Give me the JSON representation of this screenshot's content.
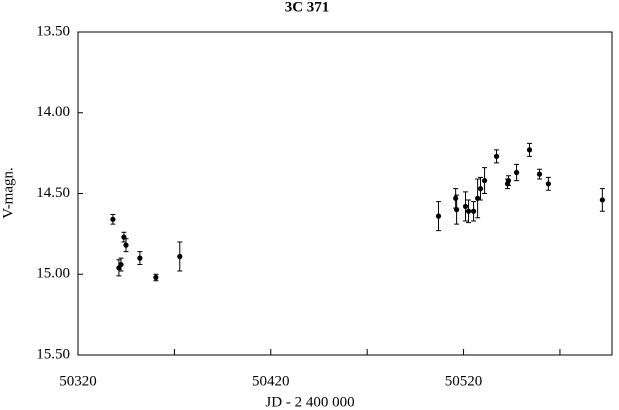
{
  "chart_data": {
    "type": "scatter",
    "title": "3C 371",
    "xlabel": "JD  - 2 400 000",
    "ylabel": "V-magn.",
    "x": [
      50338.1,
      50341.2,
      50342.3,
      50343.8,
      50344.9,
      50352.1,
      50360.4,
      50372.8,
      50507.0,
      50515.9,
      50516.4,
      50521.0,
      50522.6,
      50525.2,
      50527.3,
      50528.8,
      50530.9,
      50537.1,
      50542.8,
      50543.3,
      50547.5,
      50554.2,
      50559.4,
      50564.0,
      50592.0
    ],
    "values": [
      14.66,
      14.96,
      14.94,
      14.77,
      14.82,
      14.9,
      15.02,
      14.89,
      14.64,
      14.53,
      14.6,
      14.58,
      14.61,
      14.61,
      14.53,
      14.47,
      14.42,
      14.27,
      14.44,
      14.42,
      14.37,
      14.23,
      14.38,
      14.44,
      14.54
    ],
    "errors": [
      0.03,
      0.05,
      0.04,
      0.03,
      0.04,
      0.04,
      0.02,
      0.09,
      0.09,
      0.06,
      0.09,
      0.09,
      0.07,
      0.06,
      0.12,
      0.07,
      0.08,
      0.04,
      0.03,
      0.03,
      0.05,
      0.04,
      0.03,
      0.04,
      0.07
    ],
    "color": "#000000",
    "xlim": [
      50320,
      50597
    ],
    "xticks": [
      50320,
      50420,
      50520
    ],
    "xminor_ticks": [
      50370,
      50470,
      50570
    ],
    "ylim": [
      15.5,
      13.5
    ],
    "yinverted": true,
    "yticks": [
      {
        "value": 13.5,
        "label": "13.50"
      },
      {
        "value": 14.0,
        "label": "14.00"
      },
      {
        "value": 14.5,
        "label": "14.50"
      },
      {
        "value": 15.0,
        "label": "15.00"
      },
      {
        "value": 15.5,
        "label": "15.50"
      }
    ],
    "grid": false
  }
}
